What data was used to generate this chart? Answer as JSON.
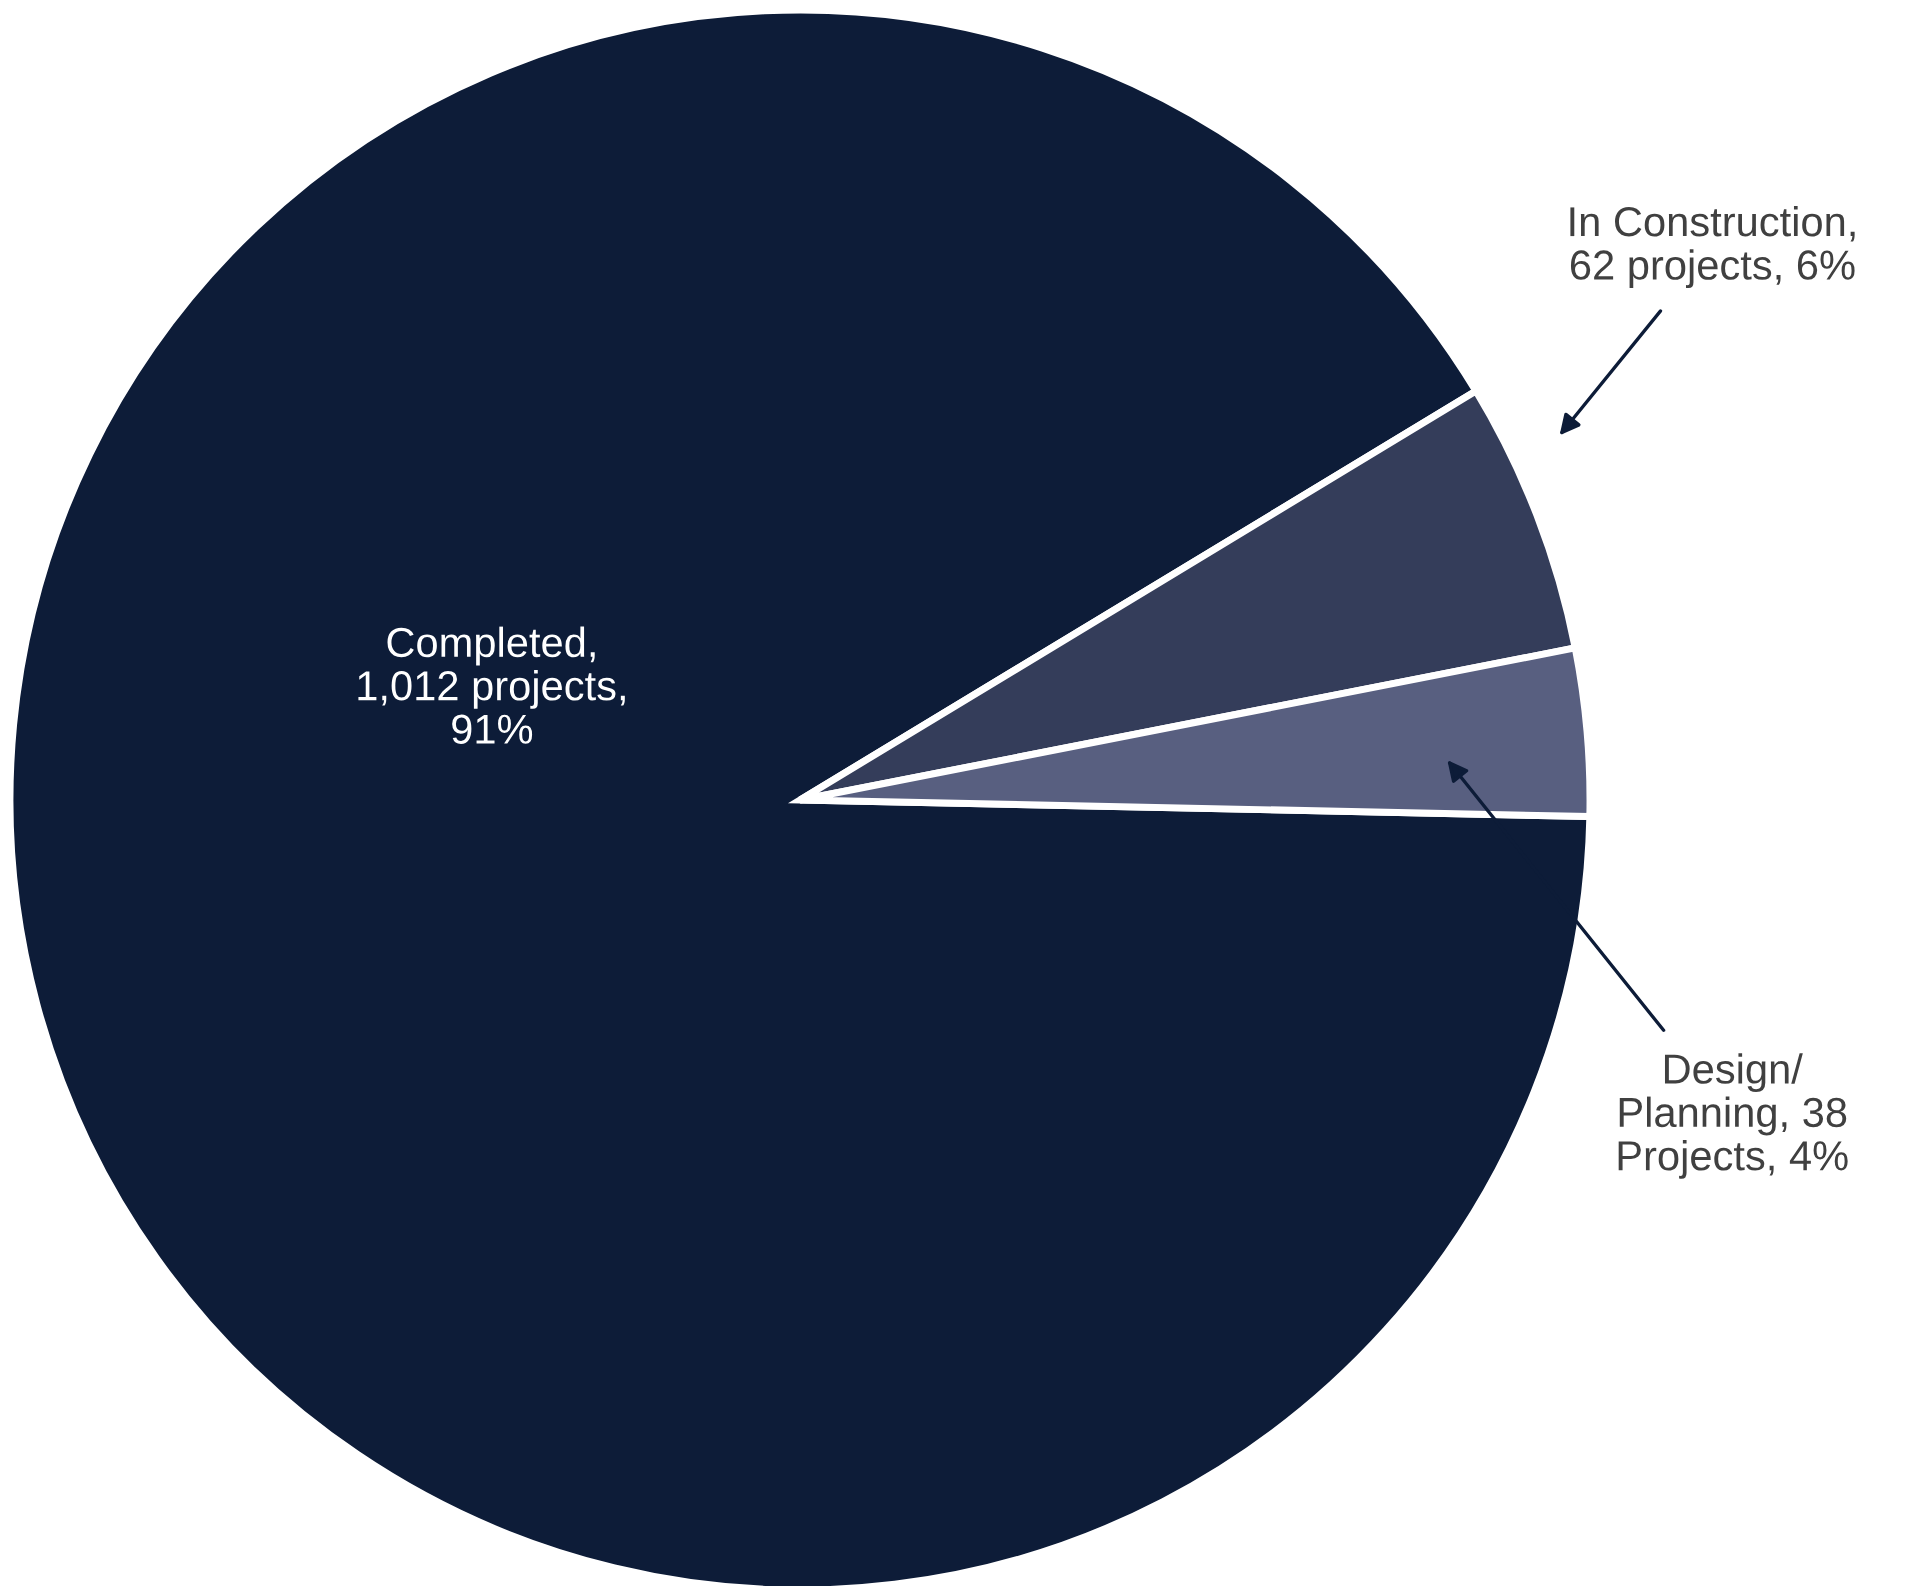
{
  "chart_data": {
    "type": "pie",
    "categories": [
      "Completed,\n1,012 projects,\n91%",
      "In Construction,\n62 projects, 6%",
      "Design/\nPlanning, 38\nProjects, 4%"
    ],
    "values": [
      1012,
      62,
      38
    ],
    "colors": [
      "#0d1c38",
      "#343d5a",
      "#585f80"
    ],
    "legend": false
  }
}
